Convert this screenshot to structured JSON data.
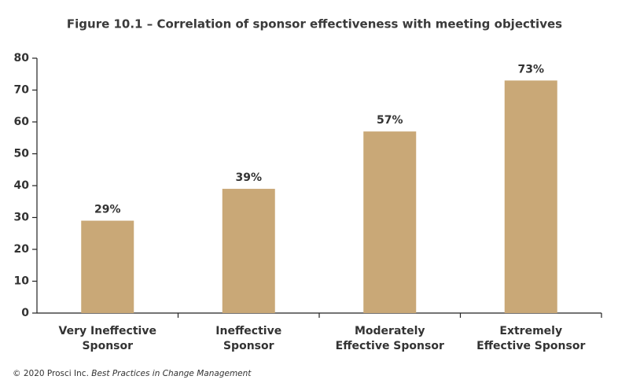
{
  "chart_data": {
    "type": "bar",
    "title": "Figure 10.1 – Correlation of sponsor effectiveness with meeting objectives",
    "categories": [
      [
        "Very Ineffective",
        "Sponsor"
      ],
      [
        "Ineffective",
        "Sponsor"
      ],
      [
        "Moderately",
        "Effective Sponsor"
      ],
      [
        "Extremely",
        "Effective Sponsor"
      ]
    ],
    "values": [
      29,
      39,
      57,
      73
    ],
    "value_labels": [
      "29%",
      "39%",
      "57%",
      "73%"
    ],
    "color": "#c9a877",
    "ylim": [
      0,
      80
    ],
    "yticks": [
      0,
      10,
      20,
      30,
      40,
      50,
      60,
      70,
      80
    ],
    "grid": false,
    "source_prefix": "© 2020 Prosci Inc.",
    "source_title": "Best Practices in Change Management"
  }
}
